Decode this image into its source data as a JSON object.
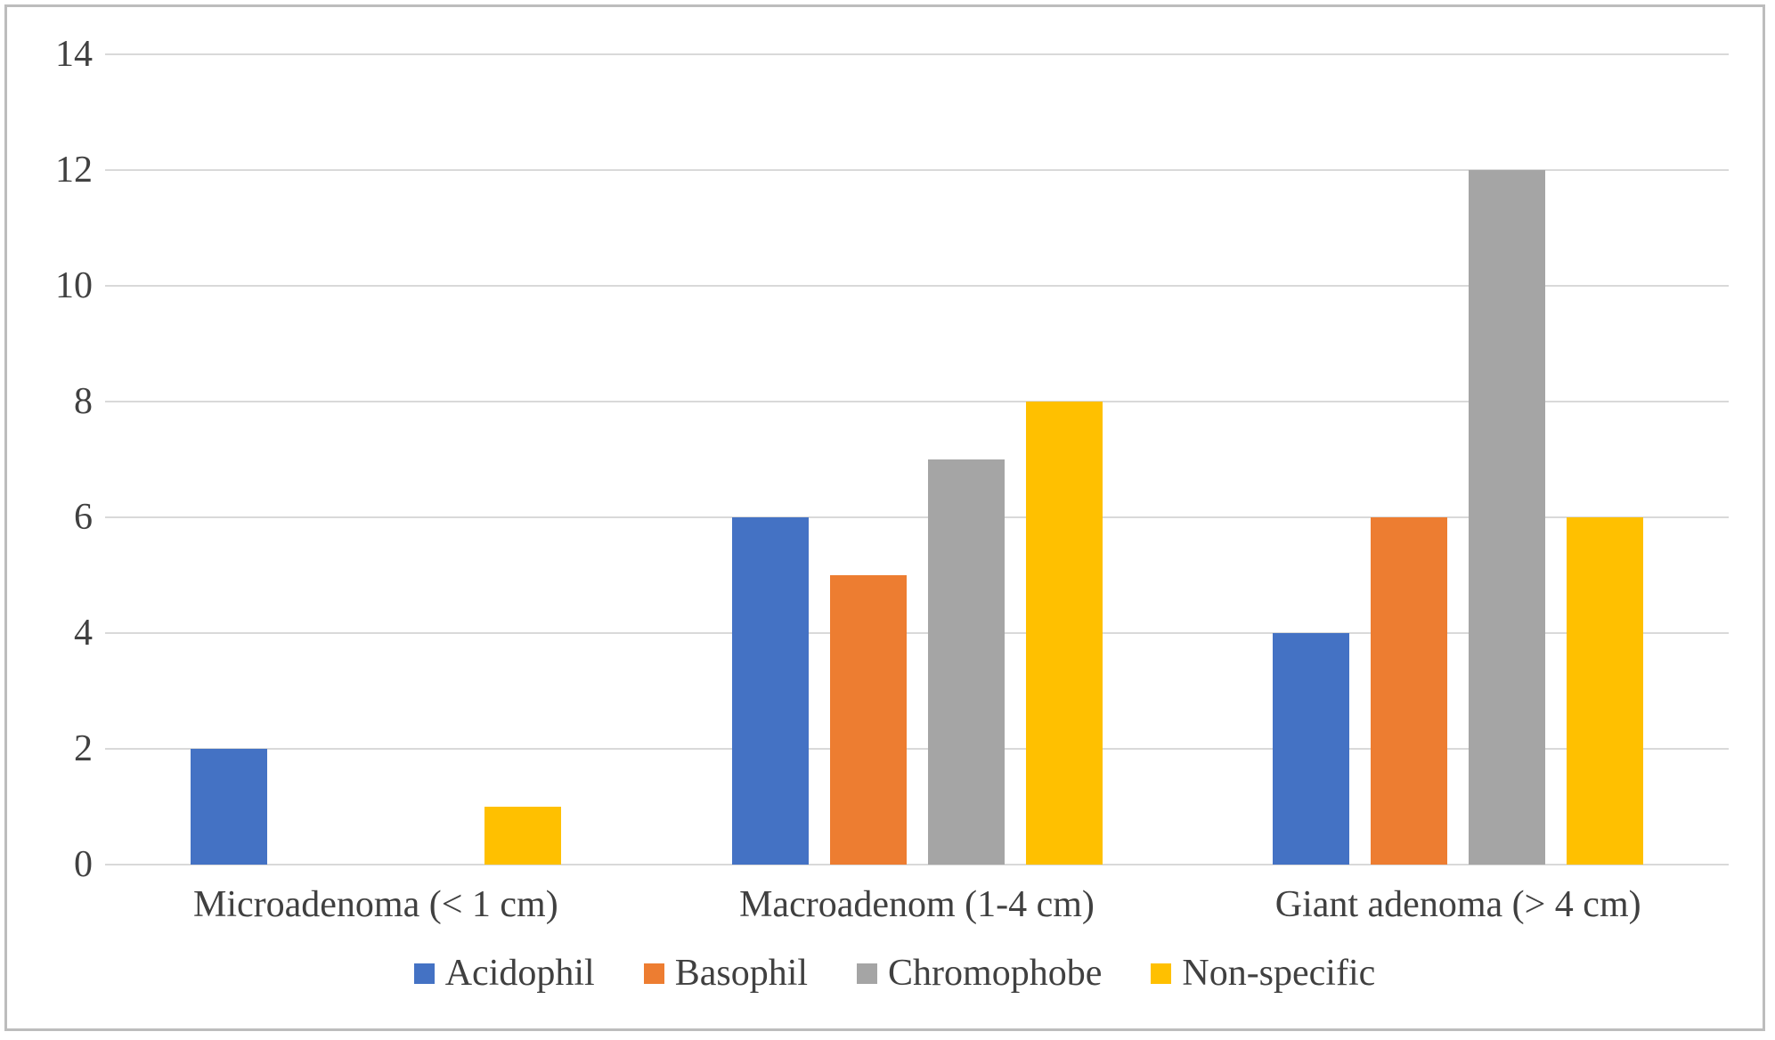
{
  "chart_data": {
    "type": "bar",
    "title": "",
    "categories": [
      "Microadenoma (< 1 cm)",
      "Macroadenom (1-4 cm)",
      "Giant adenoma (> 4 cm)"
    ],
    "series": [
      {
        "name": "Acidophil",
        "color": "#4472C4",
        "values": [
          2,
          6,
          4
        ]
      },
      {
        "name": "Basophil",
        "color": "#ED7D31",
        "values": [
          0,
          5,
          6
        ]
      },
      {
        "name": "Chromophobe",
        "color": "#A5A5A5",
        "values": [
          0,
          7,
          12
        ]
      },
      {
        "name": "Non-specific",
        "color": "#FFC000",
        "values": [
          1,
          8,
          6
        ]
      }
    ],
    "xlabel": "",
    "ylabel": "",
    "ylim": [
      0,
      14
    ],
    "y_ticks": [
      0,
      2,
      4,
      6,
      8,
      10,
      12,
      14
    ],
    "grid": true,
    "legend_position": "bottom",
    "styles": {
      "gridline_color": "#d9d9d9",
      "axis_text_color": "#404040",
      "background": "#ffffff",
      "border_color": "#bdbdbd"
    }
  }
}
